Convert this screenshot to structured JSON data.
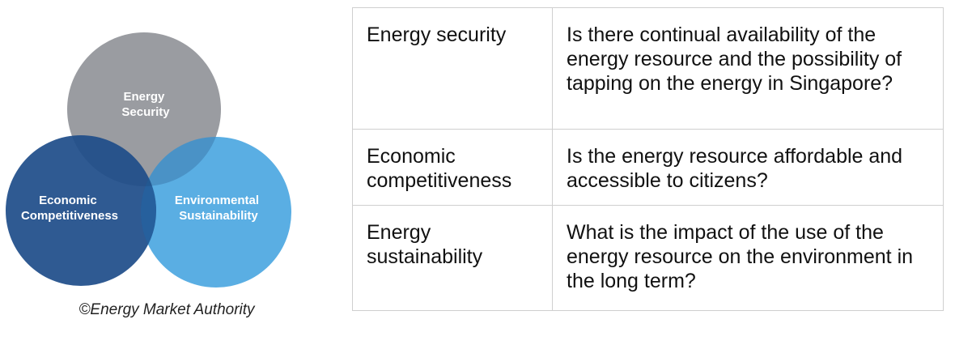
{
  "venn": {
    "circles": [
      {
        "label_lines": [
          "Energy",
          "Security"
        ],
        "color": "#9a9ca1"
      },
      {
        "label_lines": [
          "Economic",
          "Competitiveness"
        ],
        "color": "#1f4e8a"
      },
      {
        "label_lines": [
          "Environmental",
          "Sustainability"
        ],
        "color": "#5aaee3"
      }
    ]
  },
  "caption": "©Energy Market Authority",
  "table": {
    "rows": [
      {
        "criterion": "Energy security",
        "question": "Is there continual availability of the energy resource and the possibility of tapping on the energy in Singapore?"
      },
      {
        "criterion": "Economic competitiveness",
        "question": "Is the energy resource affordable and accessible to citizens?"
      },
      {
        "criterion": "Energy sustainability",
        "question": "What is the impact of the use of the energy resource on the environment in the long term?"
      }
    ]
  }
}
